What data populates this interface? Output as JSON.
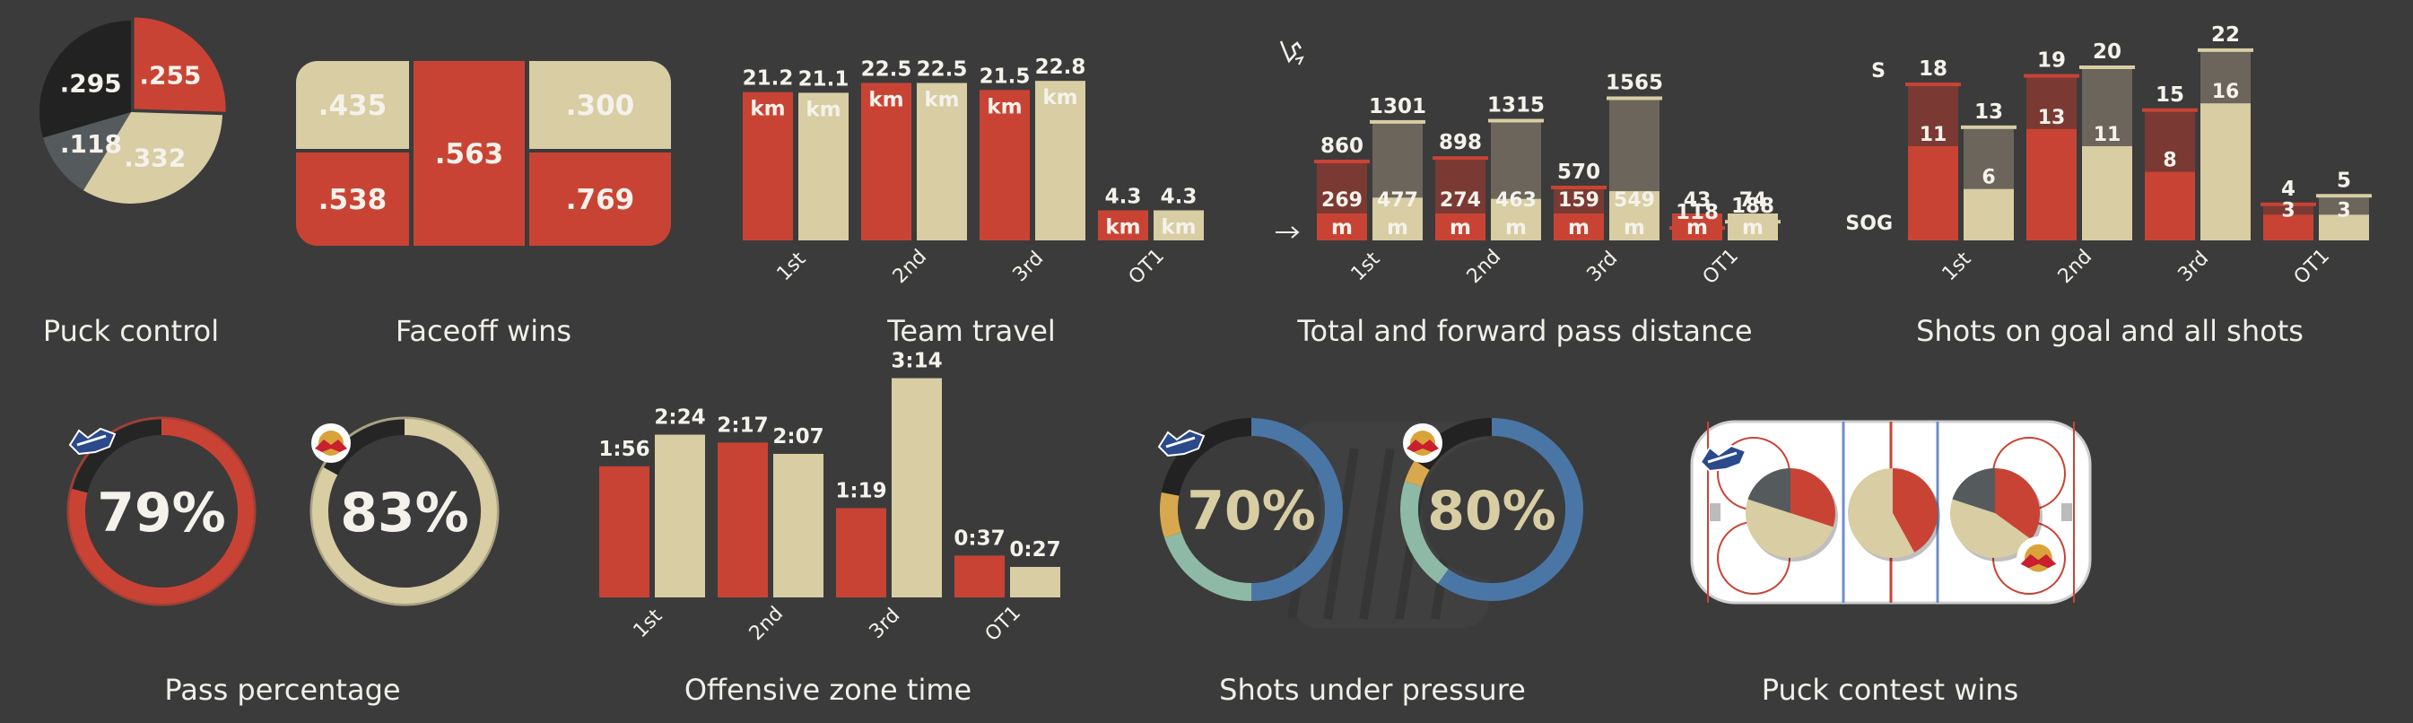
{
  "colors": {
    "background": "#3b3b3b",
    "home": "#c94335",
    "away": "#d8cda3",
    "home_dark": "#7a3a33",
    "away_dark": "#6c655c",
    "dark_slice": "#222222",
    "grey_slice": "#555a5c",
    "text": "#f4f2ea",
    "blue": "#4a76a6",
    "teal": "#8fb9a7",
    "yellow": "#d7a84e"
  },
  "chart_data": [
    {
      "id": "puck-control",
      "type": "pie",
      "title": "Puck control",
      "slices": [
        {
          "label": ".255",
          "value": 0.255,
          "color": "#c94335"
        },
        {
          "label": ".332",
          "value": 0.332,
          "color": "#d8cda3"
        },
        {
          "label": ".118",
          "value": 0.118,
          "color": "#555a5c"
        },
        {
          "label": ".295",
          "value": 0.295,
          "color": "#222222"
        }
      ]
    },
    {
      "id": "faceoff-wins",
      "type": "table",
      "title": "Faceoff wins",
      "cells": [
        {
          "label": ".435",
          "value": 0.435,
          "team": "away"
        },
        {
          "label": ".538",
          "value": 0.538,
          "team": "home"
        },
        {
          "label": ".563",
          "value": 0.563,
          "team": "home"
        },
        {
          "label": ".300",
          "value": 0.3,
          "team": "away"
        },
        {
          "label": ".769",
          "value": 0.769,
          "team": "home"
        }
      ]
    },
    {
      "id": "team-travel",
      "type": "bar",
      "title": "Team travel",
      "unit": "km",
      "categories": [
        "1st",
        "2nd",
        "3rd",
        "OT1"
      ],
      "series": [
        {
          "team": "home",
          "values": [
            21.2,
            22.5,
            21.5,
            4.3
          ],
          "labels": [
            "21.2",
            "22.5",
            "21.5",
            "4.3"
          ]
        },
        {
          "team": "away",
          "values": [
            21.1,
            22.5,
            22.8,
            4.3
          ],
          "labels": [
            "21.1",
            "22.5",
            "22.8",
            "4.3"
          ]
        }
      ]
    },
    {
      "id": "pass-distance",
      "type": "bar",
      "title": "Total and forward pass distance",
      "unit": "m",
      "categories": [
        "1st",
        "2nd",
        "3rd",
        "OT1"
      ],
      "series": [
        {
          "team": "home",
          "total": [
            860,
            898,
            570,
            118
          ],
          "forward": [
            269,
            274,
            159,
            43
          ],
          "total_labels": [
            "860",
            "898",
            "570",
            "118"
          ],
          "forward_labels": [
            "269",
            "274",
            "159",
            "43"
          ]
        },
        {
          "team": "away",
          "total": [
            1301,
            1315,
            1565,
            188
          ],
          "forward": [
            477,
            463,
            549,
            74
          ],
          "total_labels": [
            "1301",
            "1315",
            "1565",
            "188"
          ],
          "forward_labels": [
            "477",
            "463",
            "549",
            "74"
          ]
        }
      ]
    },
    {
      "id": "shots",
      "type": "bar",
      "title": "Shots on goal and all shots",
      "label_shots": "S",
      "label_sog": "SOG",
      "categories": [
        "1st",
        "2nd",
        "3rd",
        "OT1"
      ],
      "series": [
        {
          "team": "home",
          "shots": [
            18,
            19,
            15,
            4
          ],
          "sog": [
            11,
            13,
            8,
            3
          ],
          "shots_labels": [
            "18",
            "19",
            "15",
            "4"
          ],
          "sog_labels": [
            "11",
            "13",
            "8",
            "3"
          ]
        },
        {
          "team": "away",
          "shots": [
            13,
            20,
            22,
            5
          ],
          "sog": [
            6,
            11,
            16,
            3
          ],
          "shots_labels": [
            "13",
            "20",
            "22",
            "5"
          ],
          "sog_labels": [
            "6",
            "11",
            "16",
            "3"
          ]
        }
      ]
    },
    {
      "id": "pass-percentage",
      "type": "pie",
      "title": "Pass percentage",
      "items": [
        {
          "team": "home",
          "value": 0.79,
          "label": "79%"
        },
        {
          "team": "away",
          "value": 0.83,
          "label": "83%"
        }
      ]
    },
    {
      "id": "oz-time",
      "type": "bar",
      "title": "Offensive zone time",
      "categories": [
        "1st",
        "2nd",
        "3rd",
        "OT1"
      ],
      "series": [
        {
          "team": "home",
          "values": [
            116,
            137,
            79,
            37
          ],
          "labels": [
            "1:56",
            "2:17",
            "1:19",
            "0:37"
          ]
        },
        {
          "team": "away",
          "values": [
            144,
            127,
            194,
            27
          ],
          "labels": [
            "2:24",
            "2:07",
            "3:14",
            "0:27"
          ]
        }
      ]
    },
    {
      "id": "shots-pressure",
      "type": "pie",
      "title": "Shots under pressure",
      "items": [
        {
          "team": "home",
          "label": "70%",
          "segments": [
            {
              "value": 0.5,
              "color": "#4a76a6"
            },
            {
              "value": 0.2,
              "color": "#8fb9a7"
            },
            {
              "value": 0.08,
              "color": "#d7a84e"
            },
            {
              "value": 0.22,
              "color": "#222222"
            }
          ]
        },
        {
          "team": "away",
          "label": "80%",
          "segments": [
            {
              "value": 0.6,
              "color": "#4a76a6"
            },
            {
              "value": 0.2,
              "color": "#8fb9a7"
            },
            {
              "value": 0.04,
              "color": "#d7a84e"
            },
            {
              "value": 0.16,
              "color": "#222222"
            }
          ]
        }
      ]
    },
    {
      "id": "puck-contest",
      "type": "pie",
      "title": "Puck contest wins",
      "zones": [
        {
          "zone": "left",
          "slices": [
            {
              "value": 0.3,
              "color": "#c94335"
            },
            {
              "value": 0.5,
              "color": "#d8cda3"
            },
            {
              "value": 0.2,
              "color": "#555a5c"
            }
          ]
        },
        {
          "zone": "neutral",
          "slices": [
            {
              "value": 0.42,
              "color": "#c94335"
            },
            {
              "value": 0.58,
              "color": "#d8cda3"
            }
          ]
        },
        {
          "zone": "right",
          "slices": [
            {
              "value": 0.35,
              "color": "#c94335"
            },
            {
              "value": 0.45,
              "color": "#d8cda3"
            },
            {
              "value": 0.2,
              "color": "#555a5c"
            }
          ]
        }
      ]
    }
  ]
}
